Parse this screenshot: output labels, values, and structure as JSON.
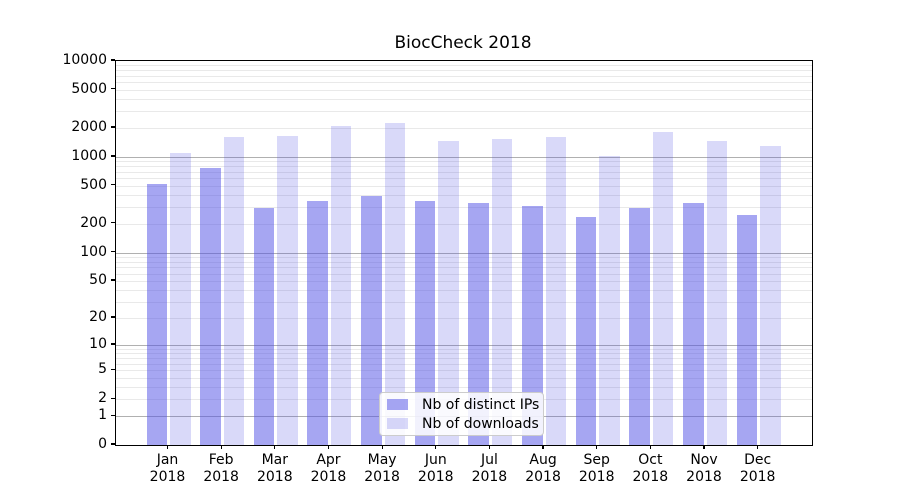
{
  "title": "BiocCheck 2018",
  "chart_data": {
    "type": "bar",
    "title": "BiocCheck 2018",
    "categories": [
      "Jan",
      "Feb",
      "Mar",
      "Apr",
      "May",
      "Jun",
      "Jul",
      "Aug",
      "Sep",
      "Oct",
      "Nov",
      "Dec"
    ],
    "category_year": "2018",
    "series": [
      {
        "name": "Nb of distinct IPs",
        "color": "rgba(77,77,229,0.5)",
        "values": [
          520,
          770,
          290,
          350,
          390,
          350,
          330,
          310,
          235,
          290,
          330,
          250
        ]
      },
      {
        "name": "Nb of downloads",
        "color": "rgba(77,77,229,0.21)",
        "values": [
          1100,
          1600,
          1650,
          2100,
          2250,
          1450,
          1550,
          1600,
          1030,
          1800,
          1450,
          1300
        ]
      }
    ],
    "xlabel": "",
    "ylabel": "",
    "yscale": "log1p",
    "ylim": [
      0,
      10000
    ],
    "yticks": [
      0,
      1,
      2,
      5,
      10,
      20,
      50,
      100,
      200,
      500,
      1000,
      2000,
      5000,
      10000
    ],
    "grid": {
      "major_lines": [
        1,
        10,
        100,
        1000
      ],
      "minor_lines": "2-9 per decade",
      "on": true
    },
    "legend_position": "lower center"
  },
  "colors": {
    "bar_base": "#4d4de5",
    "grid_major": "#b0b0b0",
    "grid_minor": "#e9e9e9",
    "spine": "#000000",
    "background": "#ffffff"
  }
}
